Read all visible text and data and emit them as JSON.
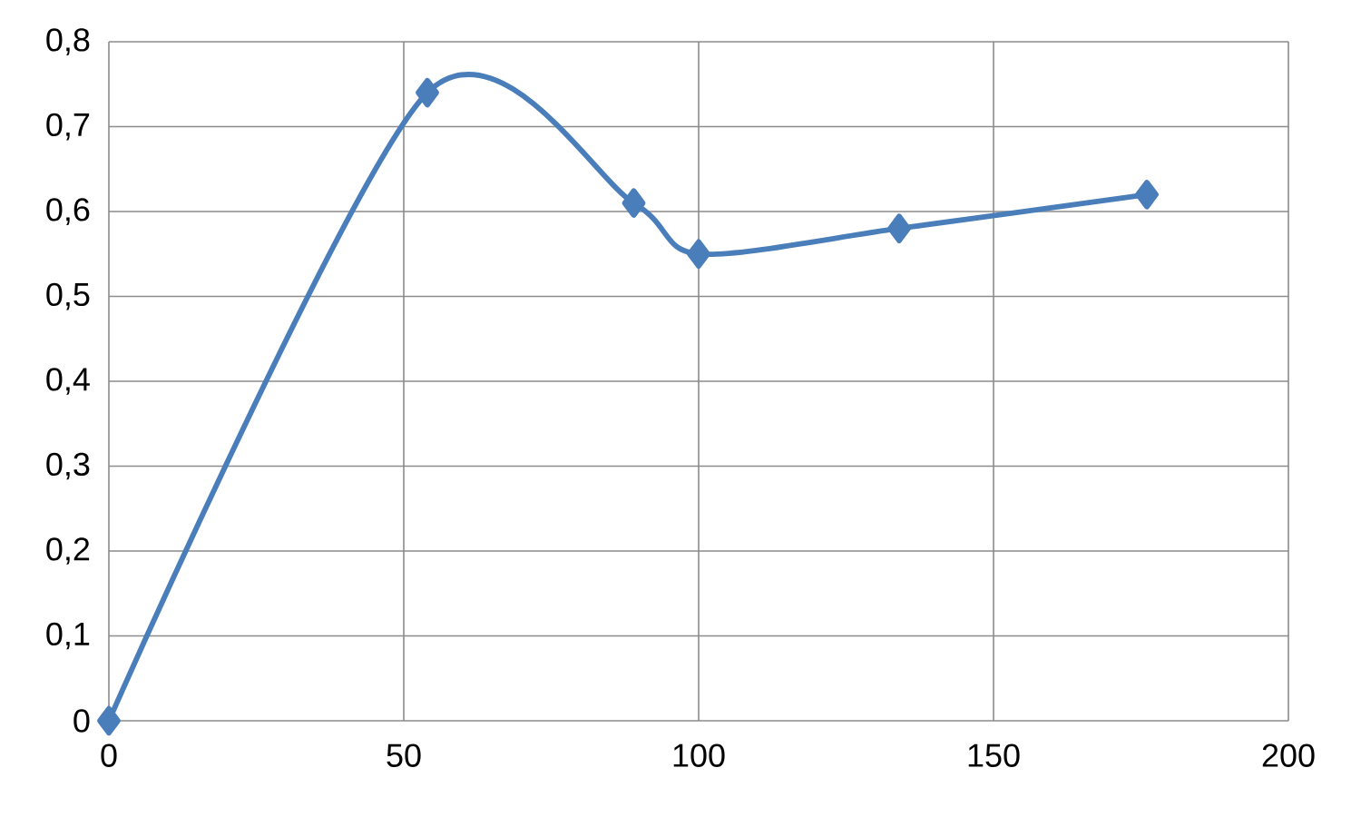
{
  "chart_data": {
    "type": "line",
    "x": [
      0,
      54,
      89,
      100,
      134,
      176
    ],
    "values": [
      0,
      0.74,
      0.61,
      0.55,
      0.58,
      0.62
    ],
    "color": "#4a7ebb",
    "marker": "diamond",
    "grid": true,
    "xlim": [
      0,
      200
    ],
    "xticks": [
      0,
      50,
      100,
      150,
      200
    ],
    "ylim": [
      0,
      0.8
    ],
    "yticks": [
      0,
      {
        "value": 0.1,
        "label": "0,1"
      },
      {
        "value": 0.2,
        "label": "0,2"
      },
      {
        "value": 0.3,
        "label": "0,3"
      },
      {
        "value": 0.4,
        "label": "0,4"
      },
      {
        "value": 0.5,
        "label": "0,5"
      },
      {
        "value": 0.6,
        "label": "0,6"
      },
      {
        "value": 0.7,
        "label": "0,7"
      },
      {
        "value": 0.8,
        "label": "0,8"
      }
    ]
  }
}
